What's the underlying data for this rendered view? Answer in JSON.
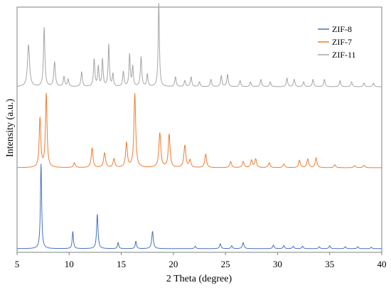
{
  "chart_data": {
    "type": "line",
    "xlabel": "2 Theta (degree)",
    "ylabel": "Intensity (a.u.)",
    "xlim": [
      5,
      40
    ],
    "ylim": [
      0,
      100
    ],
    "x_ticks": [
      5,
      10,
      15,
      20,
      25,
      30,
      35,
      40
    ],
    "y_ticks_shown": false,
    "grid": false,
    "legend_position": "top-right",
    "series": [
      {
        "name": "ZIF-8",
        "color": "#4472c4",
        "baseline": 1.5,
        "peaks": [
          [
            7.3,
            34.5,
            0.07
          ],
          [
            10.35,
            7.0,
            0.07
          ],
          [
            12.7,
            14.0,
            0.08
          ],
          [
            14.7,
            2.5,
            0.07
          ],
          [
            16.4,
            3.0,
            0.07
          ],
          [
            18.0,
            7.0,
            0.09
          ],
          [
            22.1,
            1.0,
            0.08
          ],
          [
            24.5,
            2.0,
            0.08
          ],
          [
            25.6,
            1.2,
            0.08
          ],
          [
            26.7,
            2.5,
            0.09
          ],
          [
            29.6,
            1.5,
            0.08
          ],
          [
            30.6,
            1.2,
            0.08
          ],
          [
            31.5,
            1.0,
            0.08
          ],
          [
            32.4,
            1.0,
            0.08
          ],
          [
            34.0,
            0.8,
            0.08
          ],
          [
            35.0,
            1.2,
            0.08
          ],
          [
            36.5,
            0.8,
            0.08
          ],
          [
            37.7,
            0.8,
            0.08
          ],
          [
            39.0,
            0.6,
            0.08
          ]
        ]
      },
      {
        "name": "ZIF-7",
        "color": "#ed7d31",
        "baseline": 34.5,
        "peaks": [
          [
            7.2,
            20.0,
            0.09
          ],
          [
            7.8,
            30.0,
            0.09
          ],
          [
            10.5,
            2.0,
            0.1
          ],
          [
            12.2,
            8.0,
            0.1
          ],
          [
            13.4,
            6.0,
            0.11
          ],
          [
            14.3,
            3.5,
            0.1
          ],
          [
            15.5,
            10.0,
            0.1
          ],
          [
            16.3,
            30.0,
            0.1
          ],
          [
            18.7,
            14.0,
            0.11
          ],
          [
            19.6,
            13.5,
            0.1
          ],
          [
            21.1,
            9.0,
            0.11
          ],
          [
            21.6,
            3.0,
            0.1
          ],
          [
            23.1,
            5.5,
            0.1
          ],
          [
            25.5,
            2.5,
            0.1
          ],
          [
            26.7,
            2.5,
            0.1
          ],
          [
            27.5,
            3.0,
            0.1
          ],
          [
            27.9,
            3.5,
            0.1
          ],
          [
            29.2,
            2.0,
            0.1
          ],
          [
            30.6,
            1.5,
            0.1
          ],
          [
            32.1,
            3.0,
            0.1
          ],
          [
            32.9,
            3.5,
            0.1
          ],
          [
            33.7,
            4.0,
            0.1
          ],
          [
            35.5,
            1.2,
            0.1
          ],
          [
            37.4,
            0.8,
            0.1
          ],
          [
            38.3,
            1.0,
            0.1
          ]
        ]
      },
      {
        "name": "ZIF-11",
        "color": "#a5a5a5",
        "baseline": 67.5,
        "peaks": [
          [
            6.1,
            17.0,
            0.12
          ],
          [
            7.6,
            24.0,
            0.08
          ],
          [
            8.6,
            10.0,
            0.09
          ],
          [
            9.5,
            4.0,
            0.08
          ],
          [
            9.9,
            3.0,
            0.08
          ],
          [
            11.2,
            6.0,
            0.08
          ],
          [
            12.4,
            11.0,
            0.08
          ],
          [
            12.8,
            8.0,
            0.07
          ],
          [
            13.2,
            11.0,
            0.07
          ],
          [
            13.8,
            17.0,
            0.07
          ],
          [
            14.2,
            5.0,
            0.07
          ],
          [
            15.2,
            6.0,
            0.08
          ],
          [
            15.8,
            13.0,
            0.07
          ],
          [
            16.1,
            8.0,
            0.07
          ],
          [
            16.9,
            12.0,
            0.08
          ],
          [
            17.5,
            5.0,
            0.07
          ],
          [
            18.6,
            34.0,
            0.07
          ],
          [
            20.2,
            4.0,
            0.08
          ],
          [
            21.1,
            2.5,
            0.08
          ],
          [
            21.7,
            4.0,
            0.08
          ],
          [
            22.5,
            2.0,
            0.08
          ],
          [
            23.6,
            3.0,
            0.08
          ],
          [
            24.6,
            4.5,
            0.08
          ],
          [
            25.2,
            5.0,
            0.08
          ],
          [
            26.4,
            2.5,
            0.08
          ],
          [
            27.4,
            2.0,
            0.08
          ],
          [
            28.4,
            3.0,
            0.08
          ],
          [
            29.3,
            2.0,
            0.08
          ],
          [
            30.9,
            3.5,
            0.08
          ],
          [
            31.6,
            3.0,
            0.08
          ],
          [
            32.5,
            2.0,
            0.08
          ],
          [
            33.4,
            3.0,
            0.08
          ],
          [
            34.5,
            3.0,
            0.08
          ],
          [
            36.0,
            2.5,
            0.08
          ],
          [
            37.1,
            2.0,
            0.08
          ],
          [
            38.3,
            1.5,
            0.08
          ],
          [
            39.2,
            1.5,
            0.08
          ]
        ]
      }
    ]
  }
}
